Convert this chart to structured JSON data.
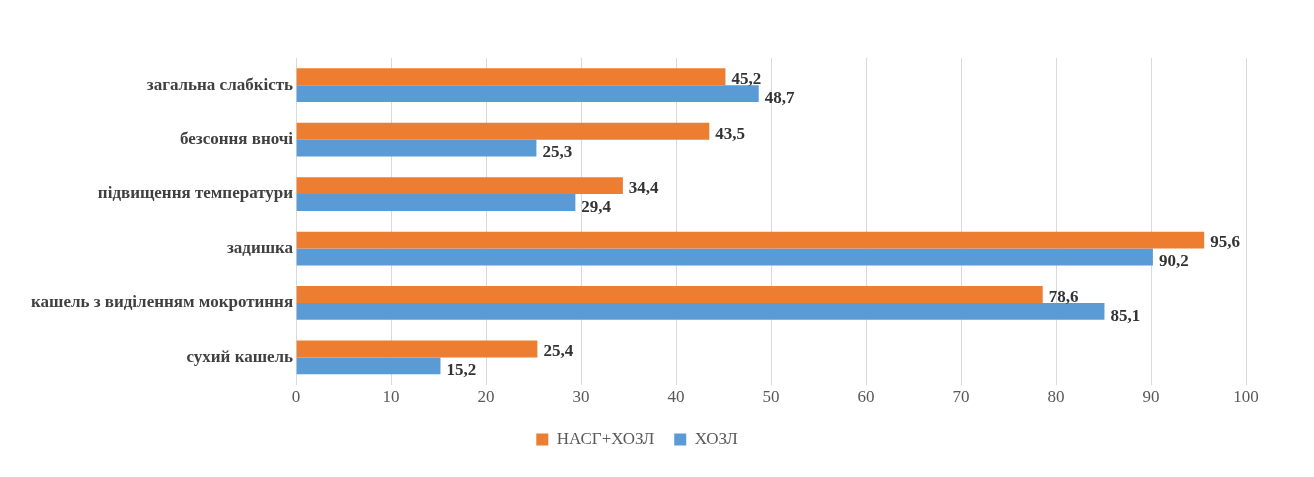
{
  "chart_data": {
    "type": "bar",
    "orientation": "horizontal",
    "categories": [
      "загальна слабкість",
      "безсоння вночі",
      "підвищення температури",
      "задишка",
      "кашель з виділенням мокротиння",
      "сухий кашель"
    ],
    "series": [
      {
        "name": "НАСГ+ХОЗЛ",
        "color": "#ed7d31",
        "values": [
          45.2,
          43.5,
          34.4,
          95.6,
          78.6,
          25.4
        ],
        "value_labels": [
          "45,2",
          "43,5",
          "34,4",
          "95,6",
          "78,6",
          "25,4"
        ]
      },
      {
        "name": "ХОЗЛ",
        "color": "#5b9bd5",
        "values": [
          48.7,
          25.3,
          29.4,
          90.2,
          85.1,
          15.2
        ],
        "value_labels": [
          "48,7",
          "25,3",
          "29,4",
          "90,2",
          "85,1",
          "15,2"
        ]
      }
    ],
    "xlim": [
      0,
      100
    ],
    "xticks": [
      0,
      10,
      20,
      30,
      40,
      50,
      60,
      70,
      80,
      90,
      100
    ],
    "grid": "x",
    "legend": "bottom"
  }
}
